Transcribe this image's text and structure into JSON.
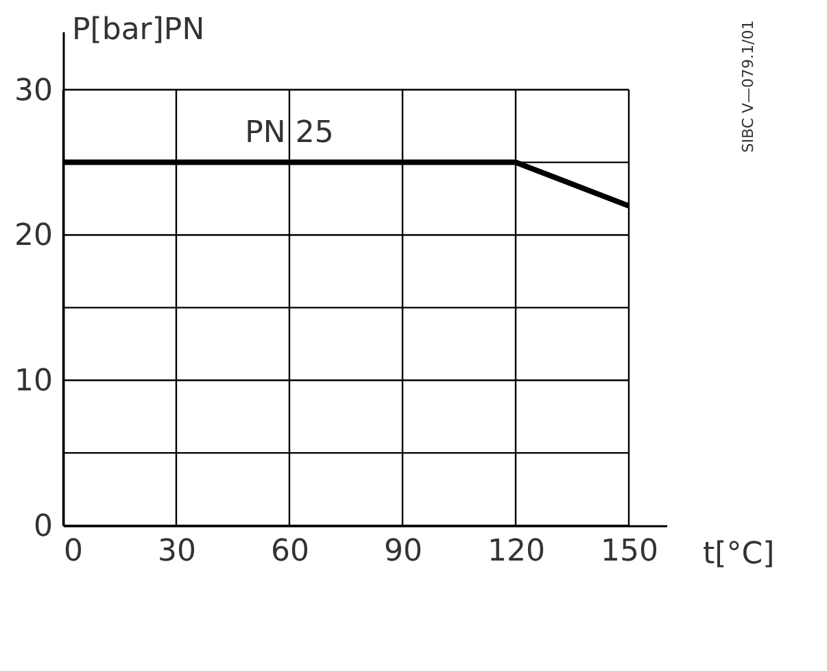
{
  "chart_data": {
    "type": "line",
    "xlabel": "t[°C]",
    "ylabel": "P[bar]PN",
    "x": [
      0,
      120,
      150
    ],
    "series": [
      {
        "color": "#000000",
        "values": [
          25,
          25,
          22
        ]
      }
    ],
    "xlim": [
      0,
      160
    ],
    "ylim": [
      0,
      34
    ],
    "xticks": [
      0,
      30,
      60,
      90,
      120,
      150
    ],
    "yticks": [
      0,
      {
        "value": 5,
        "label": null
      },
      10,
      {
        "value": 15,
        "label": null
      },
      20,
      {
        "value": 25,
        "label": null
      },
      30
    ],
    "grid": true,
    "marker": "none",
    "line_style": "solid",
    "annotations": [
      {
        "text": "PN 25",
        "x": 60,
        "y": 25
      },
      "SIBC V—079.1/01"
    ]
  }
}
